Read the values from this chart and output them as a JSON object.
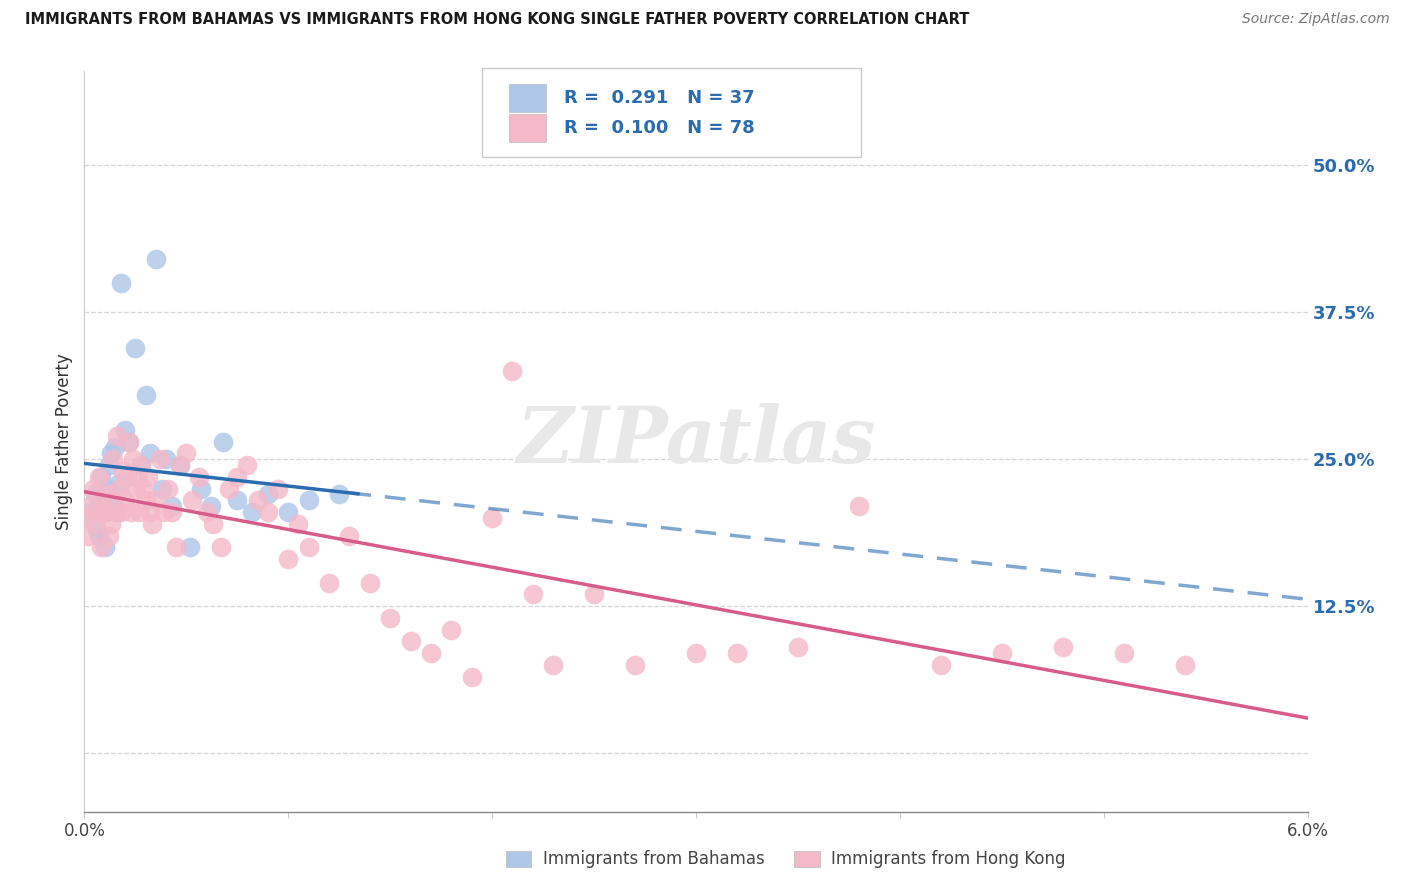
{
  "title": "IMMIGRANTS FROM BAHAMAS VS IMMIGRANTS FROM HONG KONG SINGLE FATHER POVERTY CORRELATION CHART",
  "source": "Source: ZipAtlas.com",
  "ylabel": "Single Father Poverty",
  "xmin": 0.0,
  "xmax": 6.0,
  "ymin": -5.0,
  "ymax": 58.0,
  "ytick_vals": [
    0.0,
    12.5,
    25.0,
    37.5,
    50.0
  ],
  "ytick_labels": [
    "",
    "12.5%",
    "25.0%",
    "37.5%",
    "50.0%"
  ],
  "xtick_vals": [
    0.0,
    1.0,
    2.0,
    3.0,
    4.0,
    5.0,
    6.0
  ],
  "xtick_labels": [
    "0.0%",
    "",
    "",
    "",
    "",
    "",
    "6.0%"
  ],
  "legend_label1": "Immigrants from Bahamas",
  "legend_label2": "Immigrants from Hong Kong",
  "R1": "0.291",
  "N1": "37",
  "R2": "0.100",
  "N2": "78",
  "color_blue": "#aec6e8",
  "color_pink": "#f4b8c8",
  "color_blue_line": "#2b6cb0",
  "color_pink_line": "#d85c8a",
  "watermark": "ZIPatlas",
  "bahamas_x": [
    0.03,
    0.05,
    0.06,
    0.07,
    0.08,
    0.09,
    0.1,
    0.1,
    0.11,
    0.12,
    0.13,
    0.14,
    0.15,
    0.16,
    0.17,
    0.18,
    0.2,
    0.22,
    0.25,
    0.28,
    0.3,
    0.32,
    0.35,
    0.38,
    0.4,
    0.43,
    0.47,
    0.52,
    0.57,
    0.62,
    0.68,
    0.75,
    0.82,
    0.9,
    1.0,
    1.1,
    1.25
  ],
  "bahamas_y": [
    20.5,
    22.0,
    19.0,
    18.5,
    23.5,
    21.0,
    20.5,
    17.5,
    22.5,
    24.5,
    25.5,
    21.5,
    26.0,
    20.5,
    23.0,
    40.0,
    27.5,
    26.5,
    34.5,
    24.5,
    30.5,
    25.5,
    42.0,
    22.5,
    25.0,
    21.0,
    24.5,
    17.5,
    22.5,
    21.0,
    26.5,
    21.5,
    20.5,
    22.0,
    20.5,
    21.5,
    22.0
  ],
  "hk_x": [
    0.01,
    0.02,
    0.03,
    0.04,
    0.05,
    0.06,
    0.07,
    0.08,
    0.09,
    0.1,
    0.11,
    0.12,
    0.13,
    0.14,
    0.15,
    0.16,
    0.17,
    0.18,
    0.19,
    0.2,
    0.21,
    0.22,
    0.23,
    0.24,
    0.25,
    0.26,
    0.27,
    0.28,
    0.29,
    0.3,
    0.31,
    0.32,
    0.33,
    0.35,
    0.37,
    0.39,
    0.41,
    0.43,
    0.45,
    0.47,
    0.5,
    0.53,
    0.56,
    0.6,
    0.63,
    0.67,
    0.71,
    0.75,
    0.8,
    0.85,
    0.9,
    0.95,
    1.0,
    1.05,
    1.1,
    1.2,
    1.3,
    1.4,
    1.5,
    1.6,
    1.7,
    1.8,
    1.9,
    2.0,
    2.1,
    2.2,
    2.3,
    2.5,
    2.7,
    3.0,
    3.2,
    3.5,
    3.8,
    4.2,
    4.5,
    4.8,
    5.1,
    5.4
  ],
  "hk_y": [
    20.0,
    18.5,
    21.0,
    22.5,
    19.5,
    20.5,
    23.5,
    17.5,
    21.5,
    20.5,
    22.0,
    18.5,
    19.5,
    25.0,
    20.5,
    27.0,
    22.5,
    20.5,
    24.0,
    21.5,
    23.5,
    26.5,
    20.5,
    25.0,
    22.5,
    23.5,
    20.5,
    24.5,
    22.5,
    21.5,
    23.5,
    20.5,
    19.5,
    21.5,
    25.0,
    20.5,
    22.5,
    20.5,
    17.5,
    24.5,
    25.5,
    21.5,
    23.5,
    20.5,
    19.5,
    17.5,
    22.5,
    23.5,
    24.5,
    21.5,
    20.5,
    22.5,
    16.5,
    19.5,
    17.5,
    14.5,
    18.5,
    14.5,
    11.5,
    9.5,
    8.5,
    10.5,
    6.5,
    20.0,
    32.5,
    13.5,
    7.5,
    13.5,
    7.5,
    8.5,
    8.5,
    9.0,
    21.0,
    7.5,
    8.5,
    9.0,
    8.5,
    7.5
  ]
}
